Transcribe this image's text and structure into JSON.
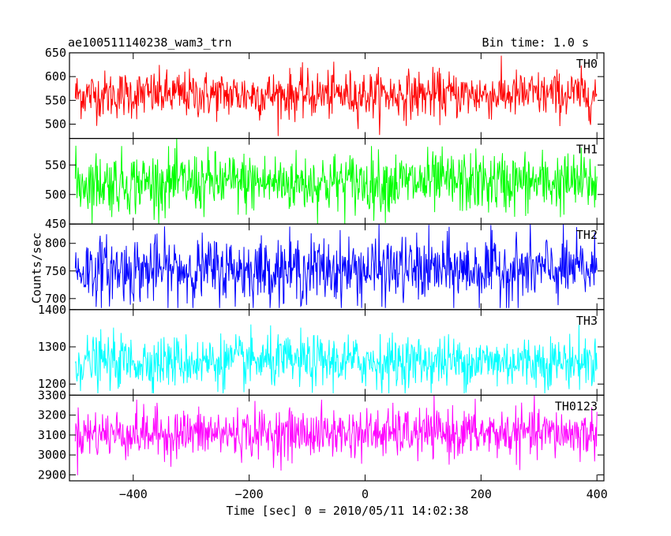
{
  "header": {
    "title": "ae100511140238_wam3_trn",
    "bin_time": "Bin time: 1.0 s"
  },
  "chart_data": {
    "type": "line",
    "xlabel": "Time [sec] 0 = 2010/05/11 14:02:38",
    "ylabel": "Counts/sec",
    "xlim": [
      -510,
      412
    ],
    "x_ticks": [
      -400,
      -200,
      0,
      200,
      400
    ],
    "x_tick_labels": [
      "−400",
      "−200",
      "0",
      "200",
      "400"
    ],
    "x_range": [
      -500,
      400
    ],
    "grid": false,
    "panels": [
      {
        "name": "TH0",
        "color": "#ff0000",
        "ylim": [
          470,
          650
        ],
        "yticks": [
          500,
          550,
          600,
          650
        ],
        "mean": 562,
        "sd": 25,
        "clip": [
          475,
          650
        ]
      },
      {
        "name": "TH1",
        "color": "#00ff00",
        "ylim": [
          450,
          595
        ],
        "yticks": [
          450,
          500,
          550
        ],
        "mean": 520,
        "sd": 26,
        "clip": [
          450,
          595
        ]
      },
      {
        "name": "TH2",
        "color": "#0000ff",
        "ylim": [
          680,
          835
        ],
        "yticks": [
          700,
          750,
          800
        ],
        "mean": 752,
        "sd": 30,
        "clip": [
          683,
          835
        ]
      },
      {
        "name": "TH3",
        "color": "#00ffff",
        "ylim": [
          1170,
          1400
        ],
        "yticks": [
          1200,
          1300,
          1400
        ],
        "mean": 1260,
        "sd": 35,
        "clip": [
          1175,
          1400
        ]
      },
      {
        "name": "TH0123",
        "color": "#ff00ff",
        "ylim": [
          2870,
          3300
        ],
        "yticks": [
          2900,
          3000,
          3100,
          3200,
          3300
        ],
        "mean": 3108,
        "sd": 62,
        "clip": [
          2870,
          3300
        ]
      }
    ]
  }
}
